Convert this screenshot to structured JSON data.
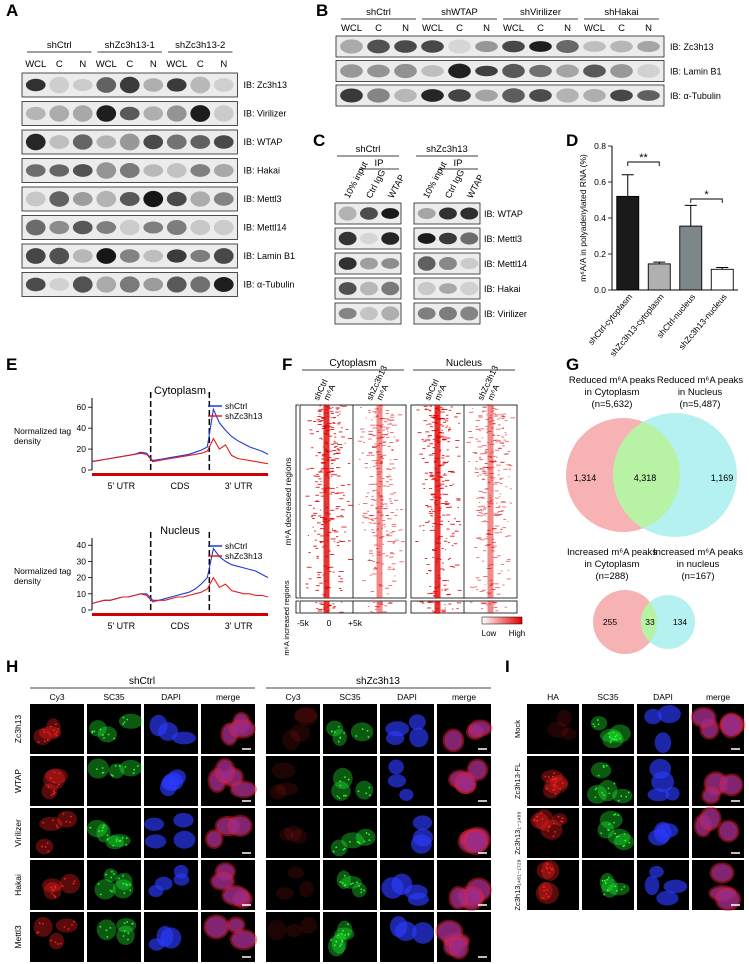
{
  "panels": {
    "A": {
      "label": "A",
      "groups": [
        "shCtrl",
        "shZc3h13-1",
        "shZc3h13-2"
      ],
      "lanes": [
        "WCL",
        "C",
        "N"
      ],
      "blots": [
        "IB: Zc3h13",
        "IB: Virilizer",
        "IB: WTAP",
        "IB: Hakai",
        "IB: Mettl3",
        "IB: Mettl14",
        "IB: Lamin B1",
        "IB: α-Tubulin"
      ]
    },
    "B": {
      "label": "B",
      "groups": [
        "shCtrl",
        "shWTAP",
        "shVirilizer",
        "shHakai"
      ],
      "lanes": [
        "WCL",
        "C",
        "N"
      ],
      "blots": [
        "IB: Zc3h13",
        "IB: Lamin B1",
        "IB: α-Tubulin"
      ]
    },
    "C": {
      "label": "C",
      "groups": [
        "shCtrl",
        "shZc3h13"
      ],
      "ip": "IP",
      "lanes": [
        "10% input",
        "Ctrl IgG",
        "WTAP"
      ],
      "blots": [
        "IB: WTAP",
        "IB: Mettl3",
        "IB: Mettl14",
        "IB: Hakai",
        "IB: Virilizer"
      ]
    },
    "F": {
      "label": "F",
      "headers": [
        "Cytoplasm",
        "Nucleus"
      ],
      "columns": [
        [
          "shCtrl",
          "m⁶A"
        ],
        [
          "shZc3h13",
          "m⁶A"
        ]
      ],
      "rows": [
        "m⁶A decreased regions",
        "m⁶A increased regions"
      ],
      "x_labels": [
        "-5k",
        "0",
        "+5k"
      ],
      "scale": [
        "Low",
        "High"
      ]
    },
    "G": {
      "label": "G",
      "top": {
        "sets": [
          {
            "title": [
              "Reduced m⁶A peaks",
              "in Cytoplasm"
            ],
            "n": "(n=5,632)"
          },
          {
            "title": [
              "Reduced m⁶A peaks",
              "in Nucleus"
            ],
            "n": "(n=5,487)"
          }
        ],
        "counts": [
          "1,314",
          "4,318",
          "1,169"
        ]
      },
      "bottom": {
        "sets": [
          {
            "title": [
              "Increased m⁶A peaks",
              "in Cytoplasm"
            ],
            "n": "(n=288)"
          },
          {
            "title": [
              "Increased m⁶A peaks",
              "in nucleus"
            ],
            "n": "(n=167)"
          }
        ],
        "counts": [
          "255",
          "33",
          "134"
        ]
      }
    },
    "H": {
      "label": "H",
      "groups": [
        "shCtrl",
        "shZc3h13"
      ],
      "channels": [
        "Cy3",
        "SC35",
        "DAPI",
        "merge"
      ],
      "rows": [
        "Zc3h13",
        "WTAP",
        "Virilizer",
        "Hakai",
        "Mettl3"
      ]
    },
    "I": {
      "label": "I",
      "channels": [
        "HA",
        "SC35",
        "DAPI",
        "merge"
      ],
      "rows": [
        "Mock",
        "Zc3h13-FL",
        "Zc3h13₁₋₁₄₈₀",
        "Zc3h13₁₄₈₁₋₁₇₂₉"
      ]
    }
  },
  "chart_data": [
    {
      "type": "bar",
      "panel_label": "D",
      "ylabel": "m⁶A/A in polyadenylated RNA (%)",
      "categories": [
        "shCtrl-cytoplasm",
        "shZc3h13-cytoplasm",
        "shCtrl-nucleus",
        "shZc3h13-nucleus"
      ],
      "values": [
        0.52,
        0.145,
        0.355,
        0.115
      ],
      "errors": [
        0.12,
        0.01,
        0.115,
        0.01
      ],
      "colors": [
        "#1a1a1a",
        "#b0b0b0",
        "#7d8787",
        "#ffffff"
      ],
      "ylim": [
        0,
        0.8
      ],
      "yticks": [
        {
          "value": 0,
          "label": "0.0"
        },
        0.2,
        0.4,
        0.6,
        0.8
      ],
      "annotations": [
        "**",
        "*"
      ]
    },
    {
      "type": "line",
      "panel_label": "E",
      "title": "Cytoplasm",
      "ylabel": [
        "Normalized tag",
        "density"
      ],
      "regions": [
        "5' UTR",
        "CDS",
        "3' UTR"
      ],
      "series": [
        {
          "name": "shCtrl",
          "color": "#1f3bd6",
          "values": [
            8,
            9,
            10,
            11,
            12,
            13,
            14,
            15,
            17,
            16,
            9,
            10,
            11,
            12,
            13,
            14,
            15,
            17,
            19,
            22,
            58,
            45,
            38,
            32,
            28,
            25,
            22,
            20,
            18,
            15
          ]
        },
        {
          "name": "shZc3h13",
          "color": "#e02020",
          "values": [
            8,
            9,
            10,
            11,
            12,
            13,
            14,
            15,
            16,
            15,
            8,
            9,
            10,
            11,
            12,
            13,
            14,
            15,
            16,
            18,
            30,
            20,
            24,
            14,
            11,
            10,
            9,
            8,
            7,
            6
          ]
        }
      ],
      "ylim": [
        0,
        65
      ],
      "yticks": [
        0,
        20,
        40,
        60
      ],
      "legend": "upper right"
    },
    {
      "type": "line",
      "title": "Nucleus",
      "ylabel": [
        "Normalized tag",
        "density"
      ],
      "regions": [
        "5' UTR",
        "CDS",
        "3' UTR"
      ],
      "series": [
        {
          "name": "shCtrl",
          "color": "#1f3bd6",
          "values": [
            4,
            5,
            6,
            6,
            7,
            8,
            8,
            9,
            10,
            10,
            6,
            6,
            7,
            8,
            9,
            10,
            11,
            13,
            16,
            20,
            38,
            33,
            30,
            28,
            27,
            26,
            25,
            24,
            22,
            20
          ]
        },
        {
          "name": "shZc3h13",
          "color": "#e02020",
          "values": [
            4,
            5,
            6,
            6,
            7,
            8,
            8,
            9,
            10,
            9,
            5,
            6,
            6,
            7,
            8,
            8,
            9,
            10,
            11,
            13,
            20,
            14,
            16,
            12,
            11,
            10,
            10,
            9,
            9,
            8
          ]
        }
      ],
      "ylim": [
        0,
        42
      ],
      "yticks": [
        0,
        10,
        20,
        30,
        40
      ],
      "legend": "upper right"
    }
  ]
}
